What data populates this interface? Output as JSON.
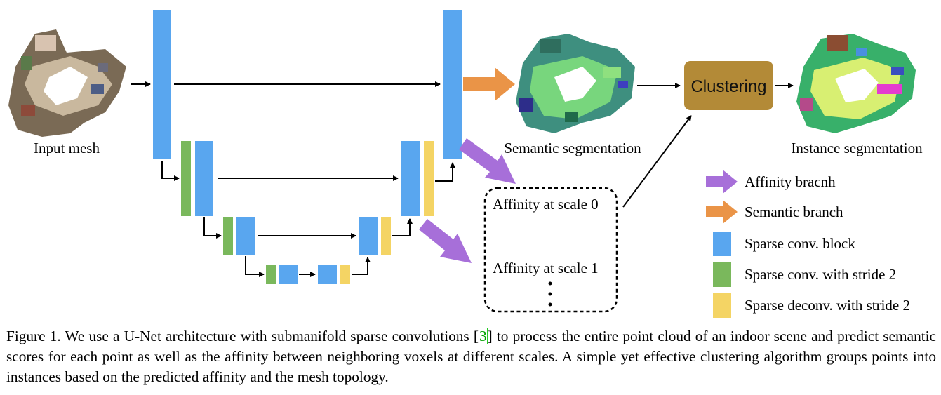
{
  "labels": {
    "input_mesh": "Input mesh",
    "semantic_segmentation": "Semantic segmentation",
    "clustering": "Clustering",
    "instance_segmentation": "Instance segmentation",
    "affinity_scale_0": "Affinity at scale 0",
    "affinity_scale_1": "Affinity at scale 1"
  },
  "legend": [
    {
      "shape": "purple-arrow",
      "label": "Affinity bracnh",
      "color": "#a76fd9"
    },
    {
      "shape": "orange-arrow",
      "label": "Semantic branch",
      "color": "#ea9447"
    },
    {
      "shape": "blue-square",
      "label": "Sparse conv. block",
      "color": "#59a6ef"
    },
    {
      "shape": "green-square",
      "label": "Sparse conv. with stride 2",
      "color": "#7ab85c"
    },
    {
      "shape": "yellow-square",
      "label": "Sparse deconv. with stride 2",
      "color": "#f4d464"
    }
  ],
  "colors": {
    "block": "#59a6ef",
    "stride_conv": "#7ab85c",
    "deconv": "#f4d464",
    "affinity_arrow": "#a76fd9",
    "semantic_arrow": "#ea9447",
    "clustering_box": "#b38a37"
  },
  "caption": {
    "part1": "Figure 1. We use a U-Net architecture with submanifold sparse convolutions [",
    "ref": "3",
    "part2": "] to process the entire point cloud of an indoor scene and predict semantic scores for each point as well as the affinity between neighboring voxels at different scales. A simple yet effective clustering algorithm groups points into instances based on the predicted affinity and the mesh topology."
  }
}
